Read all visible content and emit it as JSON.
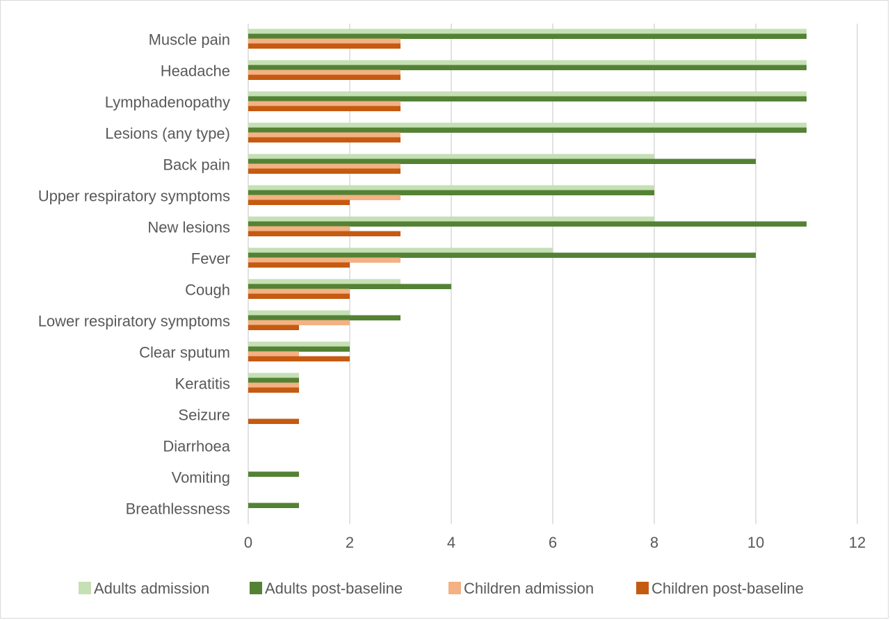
{
  "chart_data": {
    "type": "bar",
    "orientation": "horizontal",
    "categories": [
      "Muscle pain",
      "Headache",
      "Lymphadenopathy",
      "Lesions (any type)",
      "Back pain",
      "Upper respiratory symptoms",
      "New lesions",
      "Fever",
      "Cough",
      "Lower respiratory symptoms",
      "Clear sputum",
      "Keratitis",
      "Seizure",
      "Diarrhoea",
      "Vomiting",
      "Breathlessness"
    ],
    "series": [
      {
        "name": "Adults admission",
        "color": "#c5e0b4",
        "values": [
          11,
          11,
          11,
          11,
          8,
          8,
          8,
          6,
          3,
          2,
          2,
          1,
          0,
          0,
          0,
          0
        ]
      },
      {
        "name": "Adults post-baseline",
        "color": "#548235",
        "values": [
          11,
          11,
          11,
          11,
          10,
          8,
          11,
          10,
          4,
          3,
          2,
          1,
          0,
          0,
          1,
          1
        ]
      },
      {
        "name": "Children admission",
        "color": "#f4b183",
        "values": [
          3,
          3,
          3,
          3,
          3,
          3,
          2,
          3,
          2,
          2,
          1,
          1,
          0,
          0,
          0,
          0
        ]
      },
      {
        "name": "Children post-baseline",
        "color": "#c55a11",
        "values": [
          3,
          3,
          3,
          3,
          3,
          2,
          3,
          2,
          2,
          1,
          2,
          1,
          1,
          0,
          0,
          0
        ]
      }
    ],
    "xlim": [
      0,
      12
    ],
    "xticks": [
      "0",
      "2",
      "4",
      "6",
      "8",
      "10",
      "12"
    ],
    "title": "",
    "xlabel": "",
    "ylabel": "",
    "grid": "vertical",
    "legend_position": "bottom",
    "gridline_color": "#d9d9d9"
  }
}
